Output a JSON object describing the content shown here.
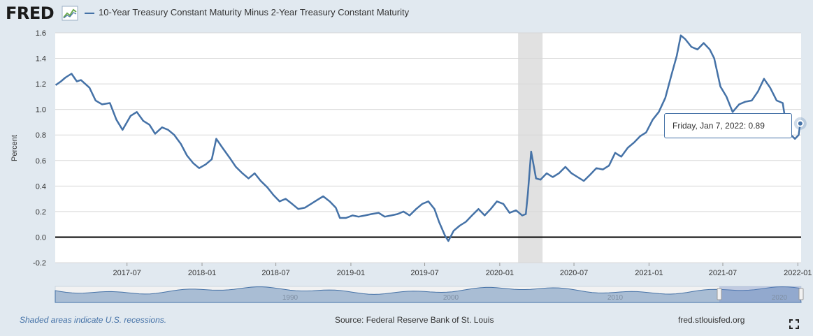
{
  "header": {
    "logo": "FRED",
    "logo_icon": "chart-line-icon",
    "legend_label": "10-Year Treasury Constant Maturity Minus 2-Year Treasury Constant Maturity"
  },
  "tooltip": {
    "date": "Friday, Jan 7, 2022:",
    "value": "0.89"
  },
  "footer": {
    "recession_note": "Shaded areas indicate U.S. recessions.",
    "source": "Source: Federal Reserve Bank of St. Louis",
    "site": "fred.stlouisfed.org",
    "fullscreen_icon": "fullscreen-icon"
  },
  "colors": {
    "series": "#4572a7",
    "background": "#e1e9f0",
    "recession": "#e1e1e1",
    "zero_line": "#000000"
  },
  "chart_data": {
    "type": "line",
    "title": "",
    "xlabel": "",
    "ylabel": "Percent",
    "ylim": [
      -0.2,
      1.6
    ],
    "yticks": [
      "1.6",
      "1.4",
      "1.2",
      "1.0",
      "0.8",
      "0.6",
      "0.4",
      "0.2",
      "0.0",
      "-0.2"
    ],
    "xticks": [
      "2017-07",
      "2018-01",
      "2018-07",
      "2019-01",
      "2019-07",
      "2020-01",
      "2020-07",
      "2021-01",
      "2021-07",
      "2022-01"
    ],
    "recession": {
      "start": "2020-02-15",
      "end": "2020-04-15"
    },
    "navigator_labels": [
      "1990",
      "2000",
      "2010",
      "2020"
    ],
    "series": [
      {
        "name": "10-Year Treasury Constant Maturity Minus 2-Year Treasury Constant Maturity",
        "points": [
          [
            "2017-01-07",
            1.19
          ],
          [
            "2017-01-20",
            1.22
          ],
          [
            "2017-01-31",
            1.25
          ],
          [
            "2017-02-15",
            1.28
          ],
          [
            "2017-02-28",
            1.22
          ],
          [
            "2017-03-10",
            1.23
          ],
          [
            "2017-03-31",
            1.17
          ],
          [
            "2017-04-15",
            1.07
          ],
          [
            "2017-05-01",
            1.04
          ],
          [
            "2017-05-20",
            1.05
          ],
          [
            "2017-06-05",
            0.92
          ],
          [
            "2017-06-20",
            0.84
          ],
          [
            "2017-07-10",
            0.95
          ],
          [
            "2017-07-25",
            0.98
          ],
          [
            "2017-08-10",
            0.91
          ],
          [
            "2017-08-25",
            0.88
          ],
          [
            "2017-09-08",
            0.81
          ],
          [
            "2017-09-25",
            0.86
          ],
          [
            "2017-10-10",
            0.84
          ],
          [
            "2017-10-25",
            0.8
          ],
          [
            "2017-11-10",
            0.73
          ],
          [
            "2017-11-25",
            0.64
          ],
          [
            "2017-12-10",
            0.58
          ],
          [
            "2017-12-25",
            0.54
          ],
          [
            "2018-01-10",
            0.57
          ],
          [
            "2018-01-25",
            0.61
          ],
          [
            "2018-02-05",
            0.77
          ],
          [
            "2018-02-20",
            0.7
          ],
          [
            "2018-03-10",
            0.62
          ],
          [
            "2018-03-25",
            0.55
          ],
          [
            "2018-04-10",
            0.5
          ],
          [
            "2018-04-25",
            0.46
          ],
          [
            "2018-05-10",
            0.5
          ],
          [
            "2018-05-25",
            0.44
          ],
          [
            "2018-06-10",
            0.39
          ],
          [
            "2018-06-25",
            0.33
          ],
          [
            "2018-07-10",
            0.28
          ],
          [
            "2018-07-25",
            0.3
          ],
          [
            "2018-08-10",
            0.26
          ],
          [
            "2018-08-25",
            0.22
          ],
          [
            "2018-09-10",
            0.23
          ],
          [
            "2018-09-25",
            0.26
          ],
          [
            "2018-10-10",
            0.29
          ],
          [
            "2018-10-25",
            0.32
          ],
          [
            "2018-11-10",
            0.28
          ],
          [
            "2018-11-25",
            0.23
          ],
          [
            "2018-12-05",
            0.15
          ],
          [
            "2018-12-20",
            0.15
          ],
          [
            "2019-01-05",
            0.17
          ],
          [
            "2019-01-20",
            0.16
          ],
          [
            "2019-02-05",
            0.17
          ],
          [
            "2019-02-20",
            0.18
          ],
          [
            "2019-03-10",
            0.19
          ],
          [
            "2019-03-25",
            0.16
          ],
          [
            "2019-04-10",
            0.17
          ],
          [
            "2019-04-25",
            0.18
          ],
          [
            "2019-05-10",
            0.2
          ],
          [
            "2019-05-25",
            0.17
          ],
          [
            "2019-06-10",
            0.22
          ],
          [
            "2019-06-25",
            0.26
          ],
          [
            "2019-07-10",
            0.28
          ],
          [
            "2019-07-25",
            0.22
          ],
          [
            "2019-08-05",
            0.12
          ],
          [
            "2019-08-20",
            0.01
          ],
          [
            "2019-08-28",
            -0.03
          ],
          [
            "2019-09-10",
            0.05
          ],
          [
            "2019-09-25",
            0.09
          ],
          [
            "2019-10-10",
            0.12
          ],
          [
            "2019-10-25",
            0.17
          ],
          [
            "2019-11-10",
            0.22
          ],
          [
            "2019-11-25",
            0.17
          ],
          [
            "2019-12-10",
            0.22
          ],
          [
            "2019-12-25",
            0.28
          ],
          [
            "2020-01-10",
            0.26
          ],
          [
            "2020-01-25",
            0.19
          ],
          [
            "2020-02-10",
            0.21
          ],
          [
            "2020-02-25",
            0.17
          ],
          [
            "2020-03-05",
            0.18
          ],
          [
            "2020-03-10",
            0.34
          ],
          [
            "2020-03-18",
            0.67
          ],
          [
            "2020-03-30",
            0.46
          ],
          [
            "2020-04-10",
            0.45
          ],
          [
            "2020-04-25",
            0.5
          ],
          [
            "2020-05-10",
            0.47
          ],
          [
            "2020-05-25",
            0.5
          ],
          [
            "2020-06-10",
            0.55
          ],
          [
            "2020-06-25",
            0.5
          ],
          [
            "2020-07-10",
            0.47
          ],
          [
            "2020-07-25",
            0.44
          ],
          [
            "2020-08-10",
            0.49
          ],
          [
            "2020-08-25",
            0.54
          ],
          [
            "2020-09-10",
            0.53
          ],
          [
            "2020-09-25",
            0.56
          ],
          [
            "2020-10-10",
            0.66
          ],
          [
            "2020-10-25",
            0.63
          ],
          [
            "2020-11-10",
            0.7
          ],
          [
            "2020-11-25",
            0.74
          ],
          [
            "2020-12-10",
            0.79
          ],
          [
            "2020-12-25",
            0.82
          ],
          [
            "2021-01-10",
            0.92
          ],
          [
            "2021-01-25",
            0.98
          ],
          [
            "2021-02-10",
            1.09
          ],
          [
            "2021-02-25",
            1.27
          ],
          [
            "2021-03-10",
            1.42
          ],
          [
            "2021-03-20",
            1.58
          ],
          [
            "2021-03-31",
            1.55
          ],
          [
            "2021-04-15",
            1.49
          ],
          [
            "2021-04-30",
            1.47
          ],
          [
            "2021-05-15",
            1.52
          ],
          [
            "2021-05-30",
            1.47
          ],
          [
            "2021-06-10",
            1.4
          ],
          [
            "2021-06-25",
            1.18
          ],
          [
            "2021-07-10",
            1.1
          ],
          [
            "2021-07-25",
            0.98
          ],
          [
            "2021-08-10",
            1.04
          ],
          [
            "2021-08-25",
            1.06
          ],
          [
            "2021-09-10",
            1.07
          ],
          [
            "2021-09-25",
            1.14
          ],
          [
            "2021-10-10",
            1.24
          ],
          [
            "2021-10-25",
            1.17
          ],
          [
            "2021-11-10",
            1.07
          ],
          [
            "2021-11-25",
            1.05
          ],
          [
            "2021-12-05",
            0.84
          ],
          [
            "2021-12-15",
            0.8
          ],
          [
            "2021-12-25",
            0.77
          ],
          [
            "2022-01-03",
            0.8
          ],
          [
            "2022-01-07",
            0.89
          ]
        ]
      }
    ]
  }
}
